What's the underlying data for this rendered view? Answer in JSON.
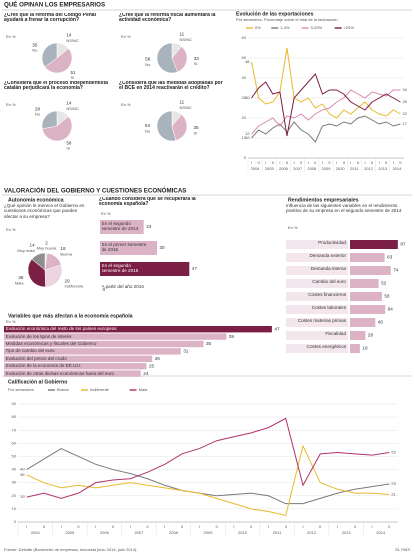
{
  "header": {
    "title": "QUÉ OPINAN LOS EMPRESARIOS"
  },
  "section_title": "VALORACIÓN DEL GOBIERNO Y CUESTIONES ECONÓMICAS",
  "footer": {
    "source": "Fuente: Deloitte (Barómetro de empresas; encuesta junio 2014, julio 2014).",
    "brand": "EL PAÍS"
  },
  "chart_data": [
    {
      "type": "pie",
      "title": "¿Cree que la reforma del Código Penal ayudará a frenar la corrupción?",
      "unit": "En %",
      "categories": [
        "NS/NC",
        "Sí",
        "No"
      ],
      "values": [
        14,
        51,
        35
      ],
      "colors": [
        "#e6e6e6",
        "#dcb2c5",
        "#a9b3be"
      ]
    },
    {
      "type": "pie",
      "title": "¿Cree que la reforma fiscal aumentará la actividad económica?",
      "unit": "En %",
      "categories": [
        "NS/NC",
        "Sí",
        "No"
      ],
      "values": [
        11,
        33,
        56
      ],
      "colors": [
        "#e6e6e6",
        "#dcb2c5",
        "#a9b3be"
      ]
    },
    {
      "type": "pie",
      "title": "¿Considera que el proceso independentista catalán perjudicará la economía?",
      "unit": "En %",
      "categories": [
        "NS/NC",
        "Sí",
        "No"
      ],
      "values": [
        14,
        58,
        28
      ],
      "colors": [
        "#e6e6e6",
        "#dcb2c5",
        "#a9b3be"
      ]
    },
    {
      "type": "pie",
      "title": "¿Considera que las medidas adoptadas por el BCE en 2014 reactivarán el crédito?",
      "unit": "En %",
      "categories": [
        "NS/NC",
        "Sí",
        "No"
      ],
      "values": [
        11,
        35,
        54
      ],
      "colors": [
        "#e6e6e6",
        "#dcb2c5",
        "#a9b3be"
      ]
    },
    {
      "type": "line",
      "title": "Evolución de las exportaciones",
      "subtitle": "Por semestres. Porcentaje sobre el total de la facturación",
      "categories": [
        "I",
        "II",
        "I",
        "II",
        "I",
        "II",
        "I",
        "II",
        "I",
        "II",
        "I",
        "II",
        "I",
        "II",
        "I",
        "II",
        "I",
        "II",
        "I",
        "II",
        "I",
        "II"
      ],
      "years": [
        "2004",
        "2005",
        "2006",
        "2007",
        "2008",
        "2009",
        "2010",
        "2011",
        "2012",
        "2013",
        "2014"
      ],
      "ylim": [
        0,
        60
      ],
      "yticks": [
        0,
        10,
        20,
        30,
        40,
        50,
        60
      ],
      "grid": true,
      "series": [
        {
          "name": "0%",
          "color": "#e8b92e",
          "values": [
            48,
            30,
            27,
            28,
            33,
            55,
            30,
            28,
            30,
            25,
            27,
            22,
            20,
            24,
            22,
            25,
            28,
            24,
            22,
            21,
            24,
            22
          ]
        },
        {
          "name": "1-4%",
          "color": "#7a7a7a",
          "values": [
            10,
            14,
            12,
            15,
            17,
            13,
            18,
            14,
            12,
            8,
            16,
            17,
            16,
            18,
            17,
            20,
            21,
            19,
            17,
            18,
            16,
            17
          ]
        },
        {
          "name": "5-25%",
          "color": "#d98bb0",
          "values": [
            12,
            16,
            18,
            20,
            16,
            21,
            20,
            22,
            19,
            22,
            24,
            25,
            28,
            30,
            34,
            32,
            30,
            33,
            32,
            31,
            34,
            34
          ]
        },
        {
          "name": ">25%",
          "color": "#7b1f45",
          "values": [
            30,
            35,
            38,
            32,
            33,
            11,
            30,
            34,
            38,
            42,
            32,
            34,
            34,
            32,
            28,
            26,
            24,
            28,
            30,
            32,
            30,
            28
          ]
        }
      ]
    },
    {
      "type": "pie",
      "title": "Autonomía económica",
      "subtitle": "¿Qué opinión le merece el Gobierno en cuestiones económicas que pueden afectar a su empresa?",
      "unit": "En %",
      "categories": [
        "Muy buena",
        "Buena",
        "Indiferente",
        "Mala",
        "Muy mala"
      ],
      "values": [
        2,
        18,
        29,
        36,
        14
      ],
      "colors": [
        "#f0dde6",
        "#dcb2c5",
        "#ecd3df",
        "#7b1f45",
        "#8e8e8e"
      ]
    },
    {
      "type": "bar",
      "title": "¿Cuándo considera que se recuperará la economía española?",
      "unit": "En %",
      "categories": [
        "En el segundo semestre de 2014",
        "En el primer semestre de 2015",
        "En el segundo semestre de 2015",
        "A partir del año 2016"
      ],
      "values": [
        23,
        30,
        47,
        0
      ],
      "colors": [
        "#dcb2c5",
        "#dcb2c5",
        "#7b1f45",
        "#dcb2c5"
      ],
      "xlim": [
        0,
        100
      ]
    },
    {
      "type": "bar",
      "title": "Rendimientos empresariales",
      "subtitle": "Influencia de las siguientes variables en el rendimiento positivo de su empresa en el segundo semestre de 2014",
      "unit": "En %",
      "categories": [
        "Productividad",
        "Demanda exterior",
        "Demanda interna",
        "Cambio del euro",
        "Costes financieros",
        "Costes laborales",
        "Costes materias primas",
        "Fiscalidad",
        "Costes energéticos"
      ],
      "values": [
        87,
        63,
        74,
        52,
        58,
        64,
        46,
        28,
        18
      ],
      "colors": [
        "#7b1f45",
        "#dcb2c5",
        "#dcb2c5",
        "#dcb2c5",
        "#dcb2c5",
        "#dcb2c5",
        "#dcb2c5",
        "#dcb2c5",
        "#dcb2c5"
      ],
      "xlim": [
        0,
        100
      ]
    },
    {
      "type": "bar",
      "title": "Variables que más afectan a la economía española",
      "unit": "En %",
      "categories": [
        "Evolución económica del resto de los países europeos",
        "Evolución de los tipos de interés",
        "Medidas económicas y fiscales del Gobierno",
        "Tipo de cambio del euro",
        "Evolución del precio del crudo",
        "Evolución de la economía de EE.UU.",
        "Evolución de otras divisas económicas fuera del euro"
      ],
      "values": [
        47,
        39,
        35,
        31,
        26,
        25,
        24
      ],
      "colors": [
        "#7b1f45",
        "#dcb2c5",
        "#dcb2c5",
        "#dcb2c5",
        "#dcb2c5",
        "#dcb2c5",
        "#dcb2c5"
      ],
      "xlim": [
        0,
        100
      ]
    },
    {
      "type": "line",
      "title": "Calificación al Gobierno",
      "subtitle": "Por semestres",
      "categories": [
        "I",
        "II",
        "I",
        "II",
        "I",
        "II",
        "I",
        "II",
        "I",
        "II",
        "I",
        "II",
        "I",
        "II",
        "I",
        "II",
        "I",
        "II",
        "I",
        "II",
        "I",
        "II"
      ],
      "years": [
        "2004",
        "2005",
        "2006",
        "2007",
        "2008",
        "2009",
        "2010",
        "2011",
        "2012",
        "2013",
        "2014"
      ],
      "ylim": [
        0,
        90
      ],
      "yticks": [
        0,
        10,
        20,
        30,
        40,
        50,
        60,
        70,
        80,
        90
      ],
      "grid": true,
      "series": [
        {
          "name": "Buena",
          "color": "#7a7a7a",
          "values": [
            40,
            48,
            56,
            50,
            44,
            40,
            37,
            33,
            28,
            24,
            22,
            20,
            21,
            22,
            20,
            14,
            14,
            18,
            22,
            25,
            27,
            29
          ]
        },
        {
          "name": "Indiferente",
          "color": "#e8b92e",
          "values": [
            36,
            30,
            26,
            28,
            26,
            28,
            30,
            28,
            26,
            24,
            22,
            18,
            14,
            10,
            8,
            5,
            58,
            30,
            25,
            22,
            22,
            21
          ]
        },
        {
          "name": "Mala",
          "color": "#b0336c",
          "values": [
            19,
            22,
            18,
            22,
            30,
            32,
            33,
            38,
            44,
            52,
            56,
            62,
            65,
            68,
            72,
            79,
            28,
            52,
            53,
            52,
            51,
            53
          ]
        }
      ]
    }
  ]
}
